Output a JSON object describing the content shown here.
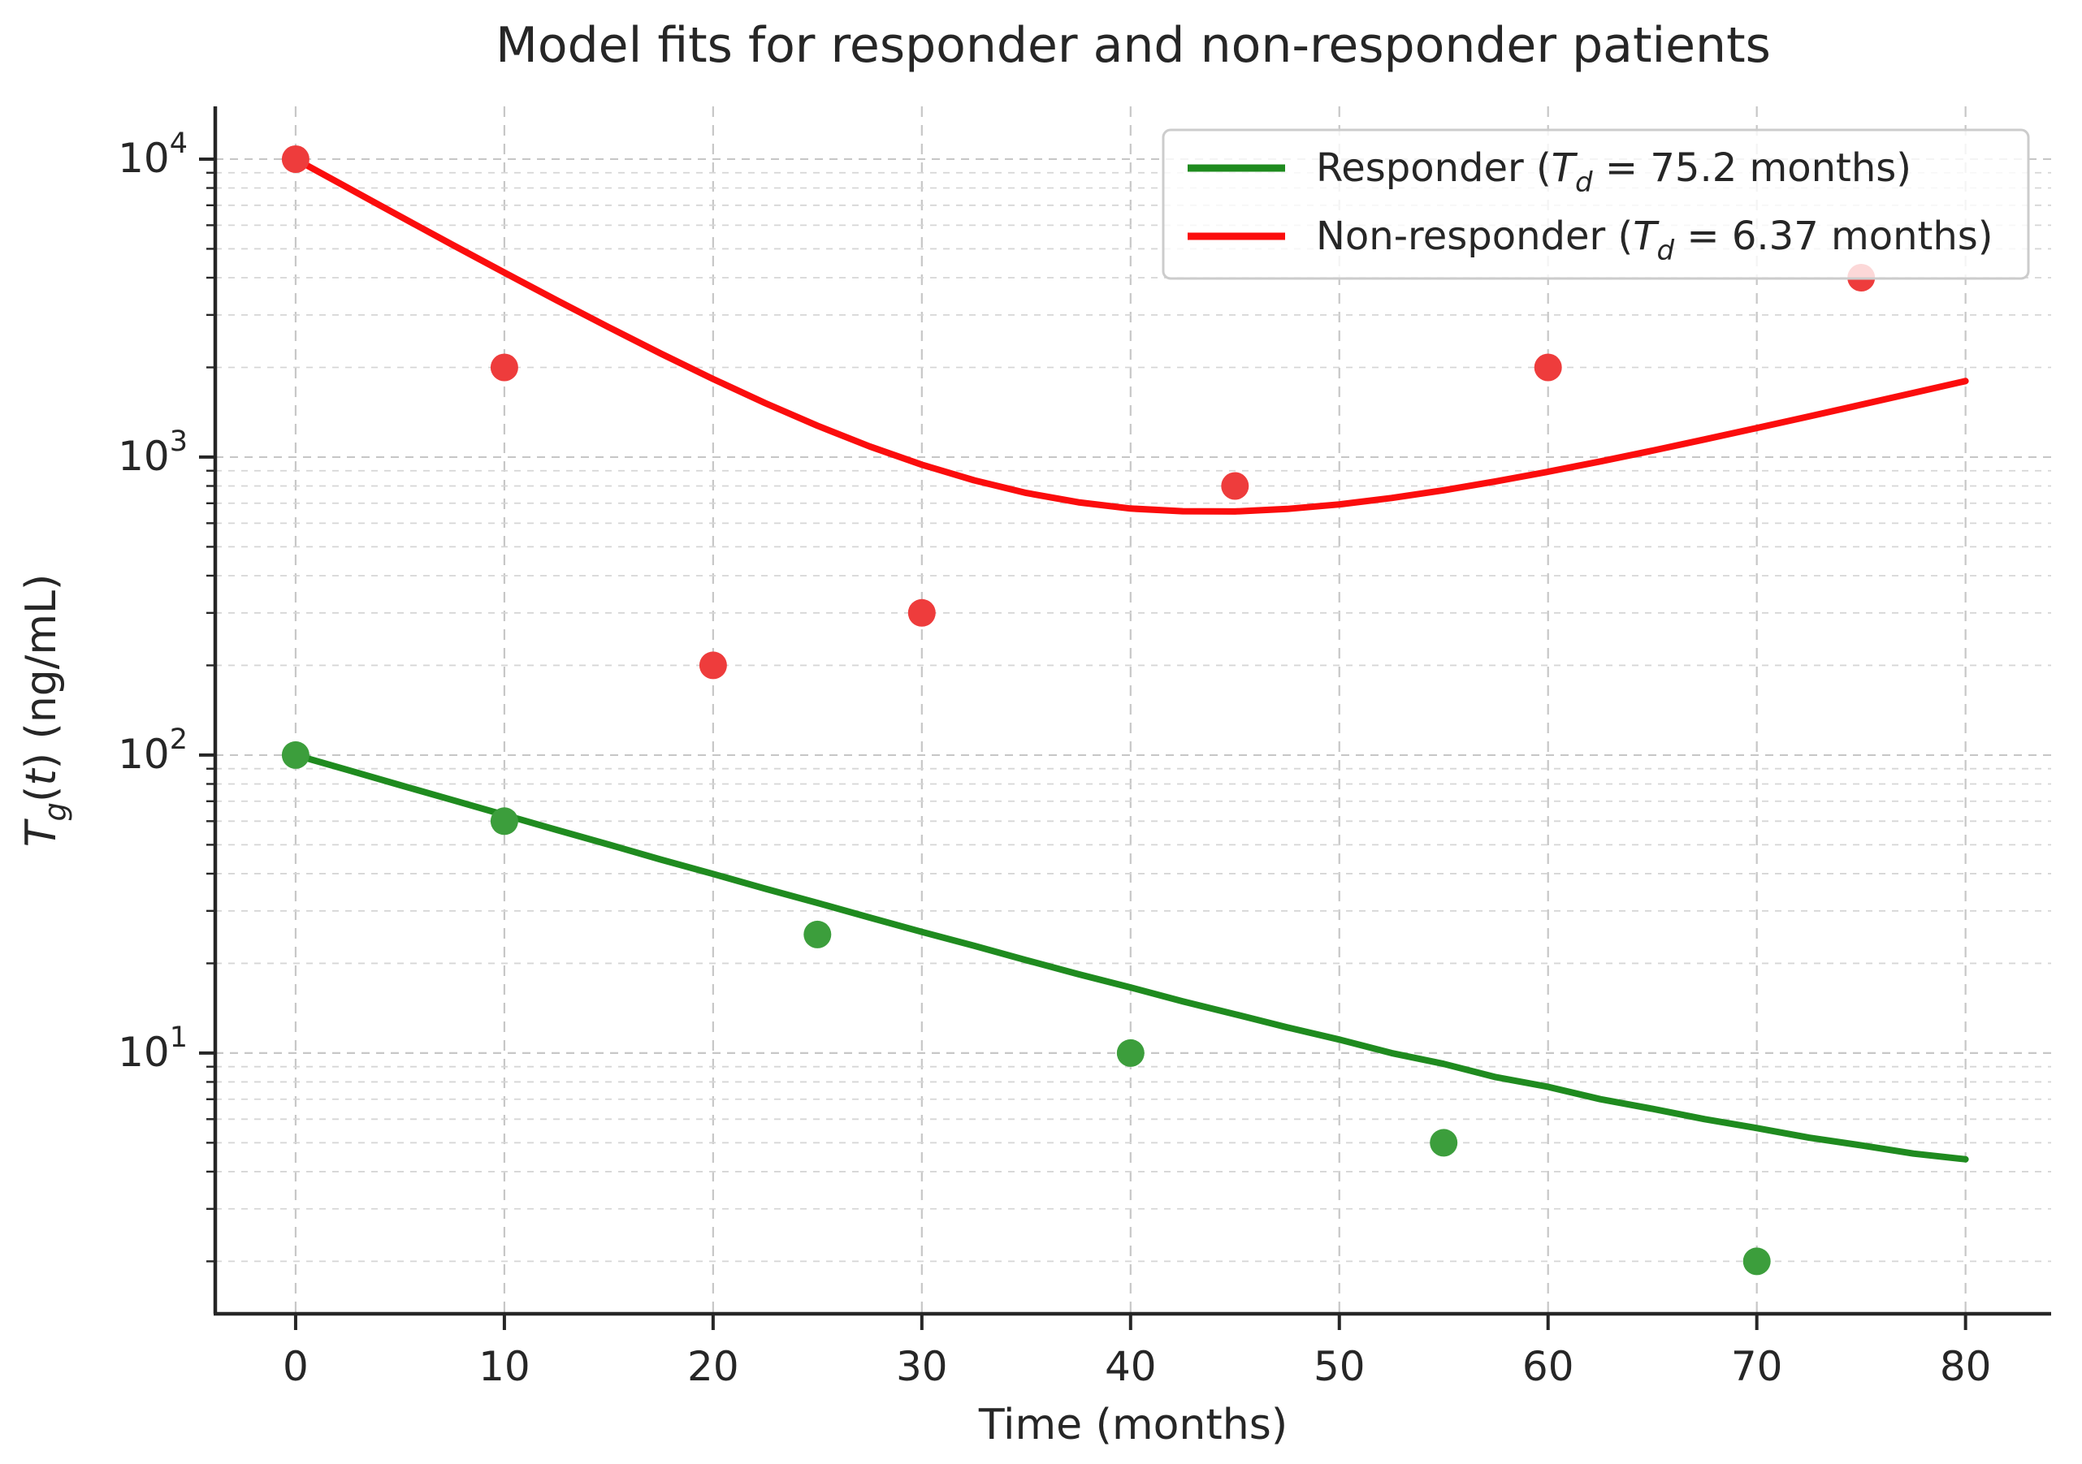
{
  "chart_data": {
    "type": "scatter",
    "title": "Model fits for responder and non-responder patients",
    "xlabel": "Time (months)",
    "ylabel_plain": "T_g(t) (ng/mL)",
    "ylabel_parts": [
      {
        "t": "T",
        "style": "italic"
      },
      {
        "t": "g",
        "style": "sub-italic"
      },
      {
        "t": "(",
        "style": "normal"
      },
      {
        "t": "t",
        "style": "italic"
      },
      {
        "t": ")",
        "style": "normal"
      },
      {
        "t": " (ng/mL)",
        "style": "normal"
      }
    ],
    "axes": {
      "x_ticks": [
        0,
        10,
        20,
        30,
        40,
        50,
        60,
        70,
        80
      ],
      "y_ticks_exponents": [
        1,
        2,
        3,
        4
      ],
      "y_tick_base": "10",
      "xlim": [
        -3.85,
        84.1
      ],
      "ylim_exp": [
        0.125,
        4.177
      ],
      "y_scale": "log",
      "grid": true
    },
    "legend": {
      "position": "upper right",
      "entries": [
        {
          "plain": "Responder (Td = 75.2 months)",
          "parts": [
            {
              "t": "Responder (",
              "style": "normal"
            },
            {
              "t": "T",
              "style": "italic"
            },
            {
              "t": "d",
              "style": "sub-italic"
            },
            {
              "t": " = 75.2 months)",
              "style": "normal"
            }
          ]
        },
        {
          "plain": "Non-responder (Td = 6.37 months)",
          "parts": [
            {
              "t": "Non-responder (",
              "style": "normal"
            },
            {
              "t": "T",
              "style": "italic"
            },
            {
              "t": "d",
              "style": "sub-italic"
            },
            {
              "t": " = 6.37 months)",
              "style": "normal"
            }
          ]
        }
      ]
    },
    "series": [
      {
        "name": "Responder",
        "doubling_time_months": 75.2,
        "line_color": "#1f8b1f",
        "marker_color": "#3c9e3c",
        "points": [
          [
            0,
            100
          ],
          [
            10,
            60
          ],
          [
            25,
            25
          ],
          [
            40,
            10
          ],
          [
            55,
            5
          ],
          [
            70,
            2
          ]
        ],
        "fit": [
          [
            0,
            100
          ],
          [
            2.5,
            89.1
          ],
          [
            5,
            79.3
          ],
          [
            7.5,
            70.7
          ],
          [
            10,
            63.0
          ],
          [
            12.5,
            56.1
          ],
          [
            15,
            50.1
          ],
          [
            17.5,
            44.6
          ],
          [
            20,
            39.9
          ],
          [
            22.5,
            35.6
          ],
          [
            25,
            31.9
          ],
          [
            27.5,
            28.5
          ],
          [
            30,
            25.5
          ],
          [
            32.5,
            22.9
          ],
          [
            35,
            20.5
          ],
          [
            37.5,
            18.4
          ],
          [
            40,
            16.6
          ],
          [
            42.5,
            14.9
          ],
          [
            45,
            13.5
          ],
          [
            47.5,
            12.2
          ],
          [
            50,
            11.1
          ],
          [
            52.5,
            10.0
          ],
          [
            55,
            9.2
          ],
          [
            57.5,
            8.3
          ],
          [
            60,
            7.7
          ],
          [
            62.5,
            7.0
          ],
          [
            65,
            6.5
          ],
          [
            67.5,
            6.0
          ],
          [
            70,
            5.6
          ],
          [
            72.5,
            5.2
          ],
          [
            75,
            4.9
          ],
          [
            77.5,
            4.6
          ],
          [
            80,
            4.4
          ]
        ]
      },
      {
        "name": "Non-responder",
        "doubling_time_months": 6.37,
        "line_color": "#fb0d0d",
        "marker_color": "#ee3c3c",
        "points": [
          [
            0,
            10000
          ],
          [
            10,
            2000
          ],
          [
            20,
            200
          ],
          [
            30,
            300
          ],
          [
            45,
            800
          ],
          [
            60,
            2000
          ],
          [
            75,
            4000
          ]
        ],
        "fit": [
          [
            0,
            10000
          ],
          [
            2.5,
            8012
          ],
          [
            5,
            6428
          ],
          [
            7.5,
            5165
          ],
          [
            10,
            4160
          ],
          [
            12.5,
            3362
          ],
          [
            15,
            2727
          ],
          [
            17.5,
            2224
          ],
          [
            20,
            1828
          ],
          [
            22.5,
            1517
          ],
          [
            25,
            1274
          ],
          [
            27.5,
            1086
          ],
          [
            30,
            943
          ],
          [
            32.5,
            836
          ],
          [
            35,
            758
          ],
          [
            37.5,
            705
          ],
          [
            40,
            672
          ],
          [
            42.5,
            658
          ],
          [
            45,
            657
          ],
          [
            47.5,
            670
          ],
          [
            50,
            694
          ],
          [
            52.5,
            729
          ],
          [
            55,
            774
          ],
          [
            57.5,
            829
          ],
          [
            60,
            893
          ],
          [
            62.5,
            967
          ],
          [
            65,
            1051
          ],
          [
            67.5,
            1146
          ],
          [
            70,
            1252
          ],
          [
            72.5,
            1369
          ],
          [
            75,
            1499
          ],
          [
            77.5,
            1642
          ],
          [
            80,
            1800
          ]
        ]
      }
    ],
    "colors": {
      "grid_major": "#c7c7c7",
      "grid_minor": "#d6d6d6",
      "spine": "#262626",
      "text": "#262626",
      "legend_border": "#cccccc",
      "legend_bg": "#ffffff"
    }
  }
}
